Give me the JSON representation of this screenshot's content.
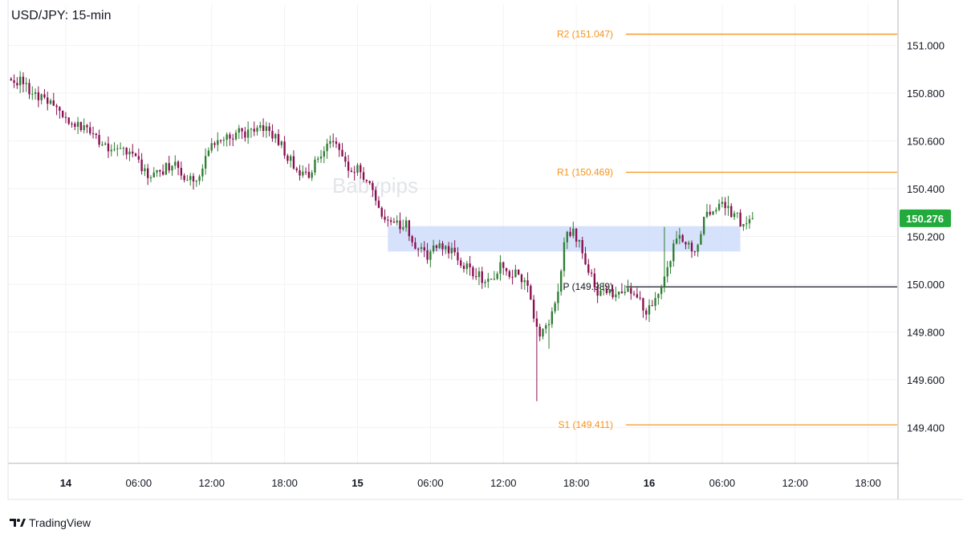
{
  "chart_data": {
    "type": "candlestick",
    "title": "USD/JPY: 15-min",
    "watermark": "Babypips",
    "y_axis": {
      "min": 149.25,
      "max": 151.17,
      "ticks": [
        "151.000",
        "150.800",
        "150.600",
        "150.400",
        "150.200",
        "150.000",
        "149.800",
        "149.600",
        "149.400"
      ],
      "tick_values": [
        151.0,
        150.8,
        150.6,
        150.4,
        150.2,
        150.0,
        149.8,
        149.6,
        149.4
      ]
    },
    "x_axis": {
      "ticks": [
        "14",
        "06:00",
        "12:00",
        "18:00",
        "15",
        "06:00",
        "12:00",
        "18:00",
        "16",
        "06:00",
        "12:00",
        "18:00"
      ],
      "tick_hours": [
        0,
        6,
        12,
        18,
        24,
        30,
        36,
        42,
        48,
        54,
        60,
        66
      ],
      "start_hour": -4.75,
      "end_hour": 68.4
    },
    "last_price": {
      "label": "150.276",
      "value": 150.276,
      "color": "#22ab3c"
    },
    "pivot_levels": [
      {
        "label": "R2 (151.047)",
        "value": 151.047,
        "color": "#f7931a"
      },
      {
        "label": "R1 (150.469)",
        "value": 150.469,
        "color": "#f7931a"
      },
      {
        "label": "P (149.989)",
        "value": 149.989,
        "color": "#131722"
      },
      {
        "label": "S1 (149.411)",
        "value": 149.411,
        "color": "#f7931a"
      }
    ],
    "zone": {
      "from_hour": 26.5,
      "to_hour": 55.5,
      "low": 150.137,
      "high": 150.243,
      "color": "#cfdcfb"
    },
    "colors": {
      "up": "#2e7d32",
      "down": "#880e4f"
    },
    "anchors": [
      [
        -4.5,
        150.86
      ],
      [
        -3.2,
        150.84
      ],
      [
        -2,
        150.78
      ],
      [
        -0.5,
        150.73
      ],
      [
        1.5,
        150.66
      ],
      [
        3,
        150.59
      ],
      [
        4.5,
        150.56
      ],
      [
        6,
        150.52
      ],
      [
        7,
        150.45
      ],
      [
        8,
        150.47
      ],
      [
        9,
        150.51
      ],
      [
        10,
        150.45
      ],
      [
        11,
        150.41
      ],
      [
        12,
        150.56
      ],
      [
        13.5,
        150.63
      ],
      [
        15,
        150.63
      ],
      [
        16.5,
        150.66
      ],
      [
        18,
        150.58
      ],
      [
        19,
        150.5
      ],
      [
        20,
        150.45
      ],
      [
        21,
        150.52
      ],
      [
        22.5,
        150.61
      ],
      [
        23.5,
        150.5
      ],
      [
        24.5,
        150.48
      ],
      [
        25.5,
        150.4
      ],
      [
        26,
        150.3
      ],
      [
        27,
        150.24
      ],
      [
        28.2,
        150.26
      ],
      [
        29,
        150.16
      ],
      [
        30,
        150.12
      ],
      [
        31,
        150.17
      ],
      [
        32,
        150.14
      ],
      [
        33,
        150.08
      ],
      [
        34,
        150.04
      ],
      [
        35,
        150.02
      ],
      [
        36,
        150.07
      ],
      [
        37,
        150.05
      ],
      [
        38,
        150.02
      ],
      [
        38.5,
        149.92
      ],
      [
        39.2,
        149.79
      ],
      [
        40.5,
        149.9
      ],
      [
        41.5,
        150.24
      ],
      [
        42.5,
        150.19
      ],
      [
        43.2,
        150.07
      ],
      [
        44,
        149.95
      ],
      [
        45,
        149.96
      ],
      [
        46,
        149.98
      ],
      [
        47.2,
        149.97
      ],
      [
        48,
        149.88
      ],
      [
        48.8,
        149.92
      ],
      [
        49.5,
        150.05
      ],
      [
        50.5,
        150.18
      ],
      [
        51,
        150.2
      ],
      [
        52,
        150.14
      ],
      [
        53,
        150.3
      ],
      [
        54.3,
        150.34
      ],
      [
        55,
        150.3
      ],
      [
        55.5,
        150.28
      ],
      [
        56,
        150.24
      ],
      [
        56.5,
        150.276
      ]
    ],
    "spikes": [
      {
        "hour": 38.75,
        "low": 149.51
      },
      {
        "hour": 39.75,
        "low": 149.73
      },
      {
        "hour": 49.25,
        "high": 150.24
      },
      {
        "hour": 54.5,
        "high": 150.37
      }
    ]
  },
  "footer": {
    "brand": "TradingView"
  }
}
